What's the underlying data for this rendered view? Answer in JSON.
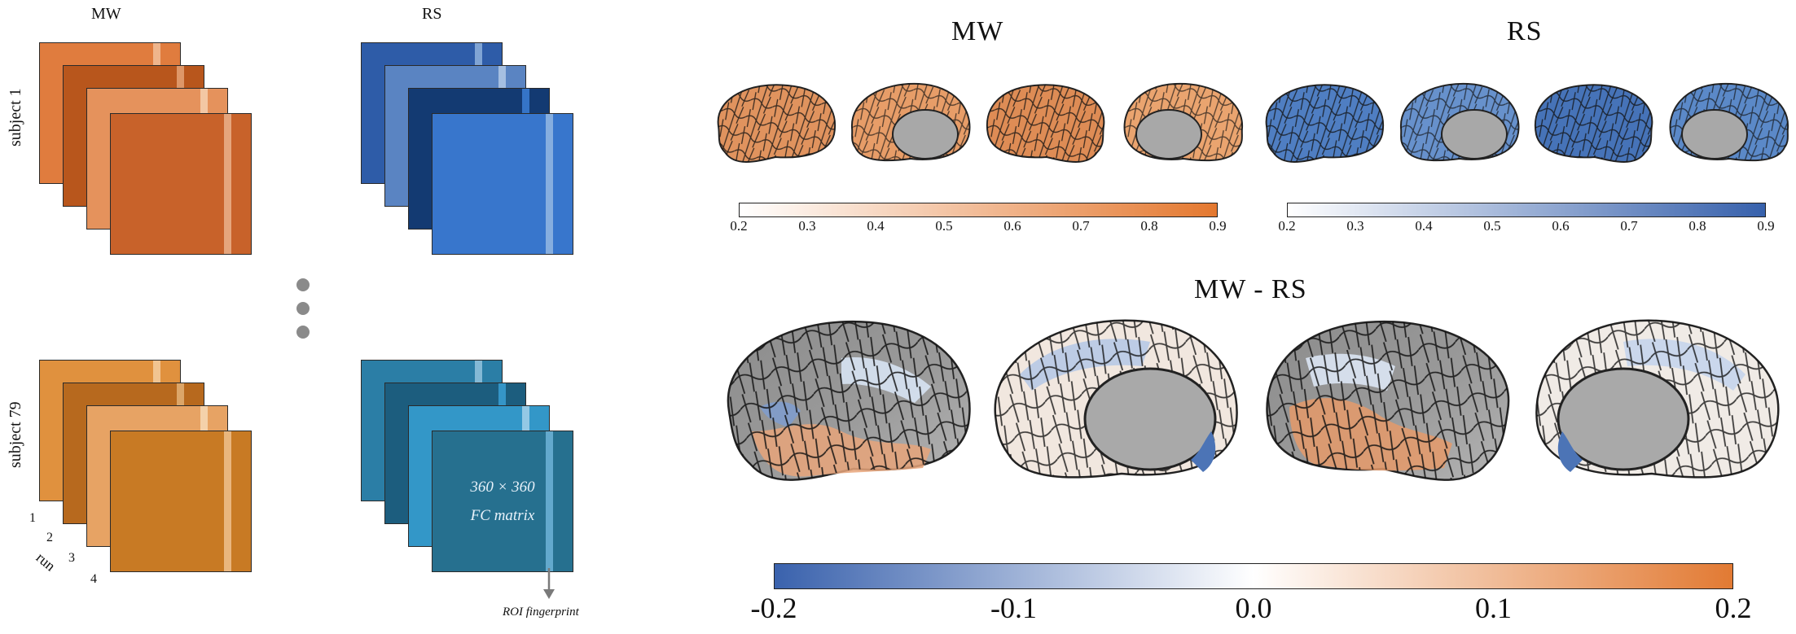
{
  "left_panel": {
    "col_mw": "MW",
    "col_rs": "RS",
    "subject_top": "subject 1",
    "subject_bottom": "subject 79",
    "runs": [
      "1",
      "2",
      "3",
      "4"
    ],
    "run_label": "run",
    "fc_line1": "360 × 360",
    "fc_line2": "FC matrix",
    "roi_fingerprint": "ROI fingerprint"
  },
  "right_panel": {
    "title_mw": "MW",
    "title_rs": "RS",
    "title_diff": "MW - RS",
    "cbar_mw_ticks": [
      "0.2",
      "0.3",
      "0.4",
      "0.5",
      "0.6",
      "0.7",
      "0.8",
      "0.9"
    ],
    "cbar_rs_ticks": [
      "0.2",
      "0.3",
      "0.4",
      "0.5",
      "0.6",
      "0.7",
      "0.8",
      "0.9"
    ],
    "cbar_diff_ticks": [
      "-0.2",
      "-0.1",
      "0.0",
      "0.1",
      "0.2"
    ]
  },
  "colors": {
    "mw_orange": "#e4824a",
    "rs_blue": "#3f6fb4",
    "diff_neg": "#3a66ae",
    "diff_pos": "#e07d3c",
    "cortex_gray": "#8c8c8c"
  }
}
